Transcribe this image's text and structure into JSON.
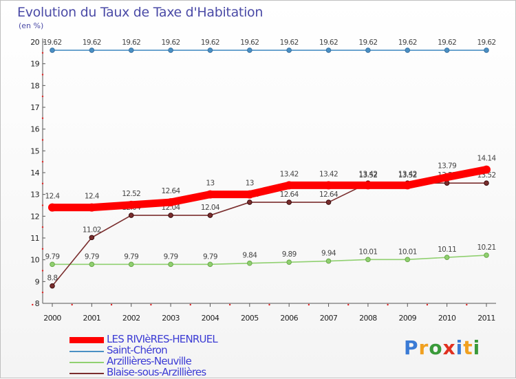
{
  "chart_data": {
    "type": "line",
    "title": "Evolution du Taux de Taxe d'Habitation",
    "subtitle": "(en %)",
    "x": [
      "2000",
      "2001",
      "2002",
      "2003",
      "2004",
      "2005",
      "2006",
      "2007",
      "2008",
      "2009",
      "2010",
      "2011"
    ],
    "ylim": [
      8,
      20
    ],
    "yticks": [
      "8",
      "9",
      "10",
      "11",
      "12",
      "13",
      "14",
      "15",
      "16",
      "17",
      "18",
      "19",
      "20"
    ],
    "grid": false,
    "series": [
      {
        "name": "Saint-Chéron",
        "color": "#4a90c4",
        "values": [
          19.62,
          19.62,
          19.62,
          19.62,
          19.62,
          19.62,
          19.62,
          19.62,
          19.62,
          19.62,
          19.62,
          19.62
        ],
        "labels": [
          "19.62",
          "19.62",
          "19.62",
          "19.62",
          "19.62",
          "19.62",
          "19.62",
          "19.62",
          "19.62",
          "19.62",
          "19.62",
          "19.62"
        ]
      },
      {
        "name": "Arzillières-Neuville",
        "color": "#90d070",
        "values": [
          9.79,
          9.79,
          9.79,
          9.79,
          9.79,
          9.84,
          9.89,
          9.94,
          10.01,
          10.01,
          10.11,
          10.21
        ],
        "labels": [
          "9.79",
          "9.79",
          "9.79",
          "9.79",
          "9.79",
          "9.84",
          "9.89",
          "9.94",
          "10.01",
          "10.01",
          "10.11",
          "10.21"
        ]
      },
      {
        "name": "Blaise-sous-Arzillières",
        "color": "#7a2e2e",
        "values": [
          8.8,
          11.02,
          12.04,
          12.04,
          12.04,
          12.64,
          12.64,
          12.64,
          13.52,
          13.52,
          13.52,
          13.52
        ],
        "labels": [
          "8.8",
          "11.02",
          "12.04",
          "12.04",
          "12.04",
          "12.64",
          "12.64",
          "12.64",
          "13.52",
          "13.52",
          "13.52",
          "13.52"
        ]
      },
      {
        "name": "LES RIVIèRES-HENRUEL",
        "color": "#ff0000",
        "values": [
          12.4,
          12.4,
          12.52,
          12.64,
          13,
          13,
          13.42,
          13.42,
          13.42,
          13.42,
          13.79,
          14.14
        ],
        "labels": [
          "12.4",
          "12.4",
          "12.52",
          "12.64",
          "13",
          "13",
          "13.42",
          "13.42",
          "13.42",
          "13.42",
          "13.79",
          "14.14"
        ]
      }
    ],
    "legend": [
      "LES RIVIèRES-HENRUEL",
      "Saint-Chéron",
      "Arzillières-Neuville",
      "Blaise-sous-Arzillières"
    ],
    "legend_position": "bottom-left"
  },
  "brand": {
    "letters": [
      "P",
      "r",
      "o",
      "x",
      "i",
      "t",
      "i"
    ],
    "colors": [
      "#3a7bd5",
      "#f0a020",
      "#3a9a3a",
      "#e03020",
      "#3a7bd5",
      "#f0a020",
      "#3a9a3a"
    ]
  }
}
